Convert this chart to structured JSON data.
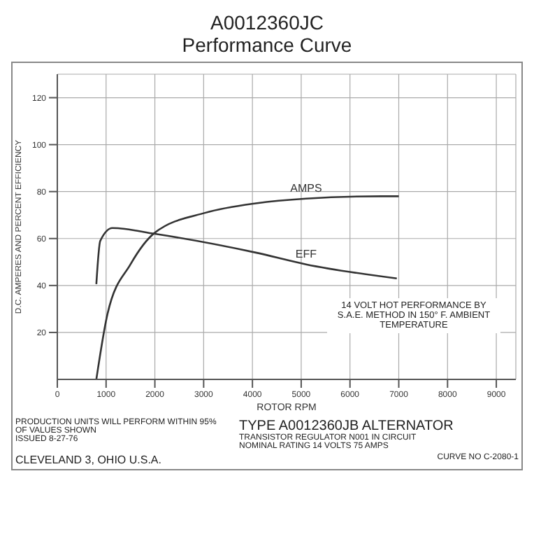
{
  "chart_data": {
    "type": "line",
    "title": "A0012360JC",
    "subtitle": "Performance Curve",
    "xlabel": "ROTOR RPM",
    "ylabel": "D.C. AMPERES AND PERCENT EFFICIENCY",
    "xlim": [
      0,
      9400
    ],
    "xticks": [
      0,
      1000,
      2000,
      3000,
      4000,
      5000,
      6000,
      7000,
      8000,
      9000
    ],
    "ylim": [
      0,
      130
    ],
    "yticks": [
      20,
      40,
      60,
      80,
      100,
      120
    ],
    "series": [
      {
        "name": "AMPS",
        "color": "#333333",
        "x": [
          800,
          1030,
          1500,
          2000,
          3040,
          4070,
          5100,
          6650,
          7000
        ],
        "values": [
          0,
          28,
          49,
          62.5,
          71,
          75,
          77,
          78,
          78
        ]
      },
      {
        "name": "EFF",
        "color": "#333333",
        "x": [
          800,
          880,
          1130,
          2000,
          4070,
          5100,
          6960
        ],
        "values": [
          40.6,
          59,
          64.5,
          62,
          54,
          49,
          43
        ]
      }
    ],
    "grid": true,
    "marker": "none",
    "line_style": "solid",
    "annotations": [
      "14 VOLT HOT PERFORMANCE BY S.A.E. METHOD IN 150° F. AMBIENT TEMPERATURE",
      "TYPE A0012360JB ALTERNATOR",
      "TRANSISTOR REGULATOR N001 IN CIRCUIT",
      "NOMINAL RATING 14 VOLTS 75 AMPS",
      "PRODUCTION UNITS WILL PERFORM WITHIN 95% OF VALUES SHOWN",
      "ISSUED 8-27-76",
      "CLEVELAND 3, OHIO U.S.A.",
      "CURVE NO C-2080-1"
    ]
  }
}
